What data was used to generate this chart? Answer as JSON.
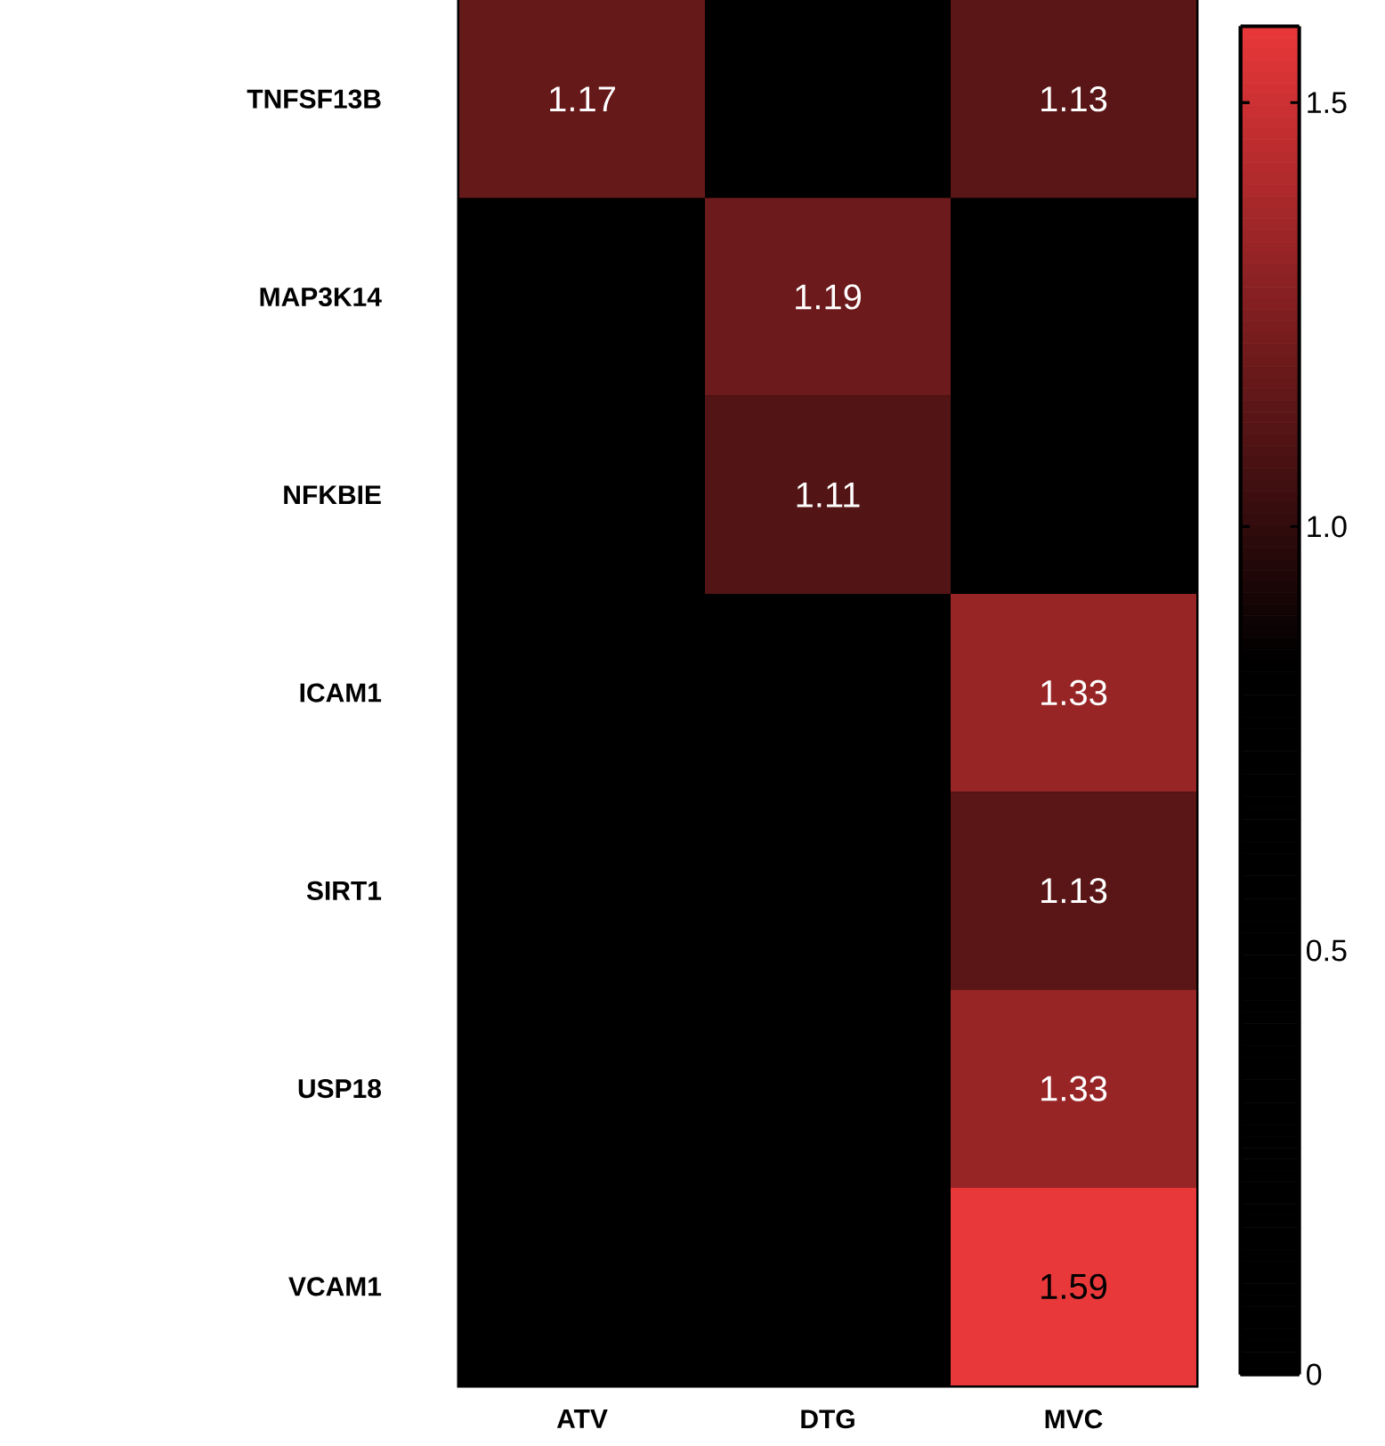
{
  "chart_data": {
    "type": "heatmap",
    "categories": [
      "ATV",
      "DTG",
      "MVC"
    ],
    "y_categories": [
      "TNFSF13B",
      "MAP3K14",
      "NFKBIE",
      "ICAM1",
      "SIRT1",
      "USP18",
      "VCAM1"
    ],
    "cells": [
      [
        1.17,
        null,
        1.13
      ],
      [
        null,
        1.19,
        null
      ],
      [
        null,
        1.11,
        null
      ],
      [
        null,
        null,
        1.33
      ],
      [
        null,
        null,
        1.13
      ],
      [
        null,
        null,
        1.33
      ],
      [
        null,
        null,
        1.59
      ]
    ],
    "data_labels": true,
    "clim": [
      0,
      1.59
    ],
    "cticks": [
      0,
      0.5,
      {
        "value": 1,
        "label": "1.0"
      },
      1.5
    ]
  }
}
